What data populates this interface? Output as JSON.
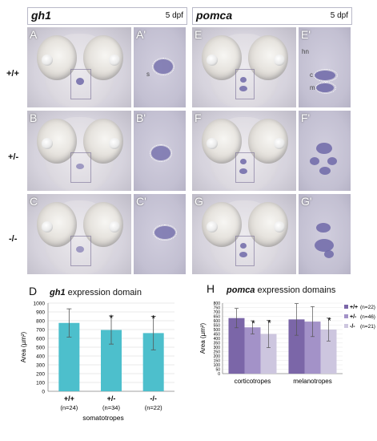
{
  "figure": {
    "left_header": {
      "gene": "gh1",
      "stage": "5 dpf"
    },
    "right_header": {
      "gene": "pomca",
      "stage": "5 dpf"
    },
    "genotypes": [
      "+/+",
      "+/-",
      "-/-"
    ],
    "panel_labels": {
      "gh1_main": [
        "A",
        "B",
        "C"
      ],
      "gh1_zoom": [
        "A'",
        "B'",
        "C'"
      ],
      "pomca_main": [
        "E",
        "F",
        "G"
      ],
      "pomca_zoom": [
        "E'",
        "F'",
        "G'"
      ]
    },
    "zoom_annotations": {
      "s": "s",
      "hn": "hn",
      "c": "c",
      "m": "m"
    },
    "colors": {
      "gh1_bar": "#4dbfcc",
      "wt": "#7b66a8",
      "het": "#a392c8",
      "hom": "#cdc6df"
    }
  },
  "chart_data": [
    {
      "type": "bar",
      "panel_letter": "D",
      "title_gene": "gh1",
      "title_rest": "expression domain",
      "ylabel": "Area (µm²)",
      "xlabel": "somatotropes",
      "ylim": [
        0,
        1000
      ],
      "yticks": [
        0,
        100,
        200,
        300,
        400,
        500,
        600,
        700,
        800,
        900,
        1000
      ],
      "categories": [
        "+/+",
        "+/-",
        "-/-"
      ],
      "n_labels": [
        "(n=24)",
        "(n=34)",
        "(n=22)"
      ],
      "values": [
        775,
        695,
        660
      ],
      "errors": [
        160,
        160,
        190
      ],
      "significant": [
        false,
        true,
        true
      ],
      "sig_mark": "*"
    },
    {
      "type": "bar",
      "panel_letter": "H",
      "title_gene": "pomca",
      "title_rest": "expression domains",
      "ylabel": "Area (µm²)",
      "ylim": [
        0,
        800
      ],
      "yticks": [
        0,
        50,
        100,
        150,
        200,
        250,
        300,
        350,
        400,
        450,
        500,
        550,
        600,
        650,
        700,
        750,
        800
      ],
      "categories": [
        "corticotropes",
        "melanotropes"
      ],
      "sig_mark": "*",
      "series": [
        {
          "name": "+/+",
          "n": "(n=22)",
          "values": [
            630,
            615
          ],
          "errors": [
            110,
            180
          ],
          "significant": [
            false,
            false
          ]
        },
        {
          "name": "+/-",
          "n": "(n=46)",
          "values": [
            525,
            590
          ],
          "errors": [
            75,
            170
          ],
          "significant": [
            true,
            false
          ]
        },
        {
          "name": "-/-",
          "n": "(n=21)",
          "values": [
            450,
            500
          ],
          "errors": [
            155,
            130
          ],
          "significant": [
            true,
            true
          ]
        }
      ]
    }
  ]
}
